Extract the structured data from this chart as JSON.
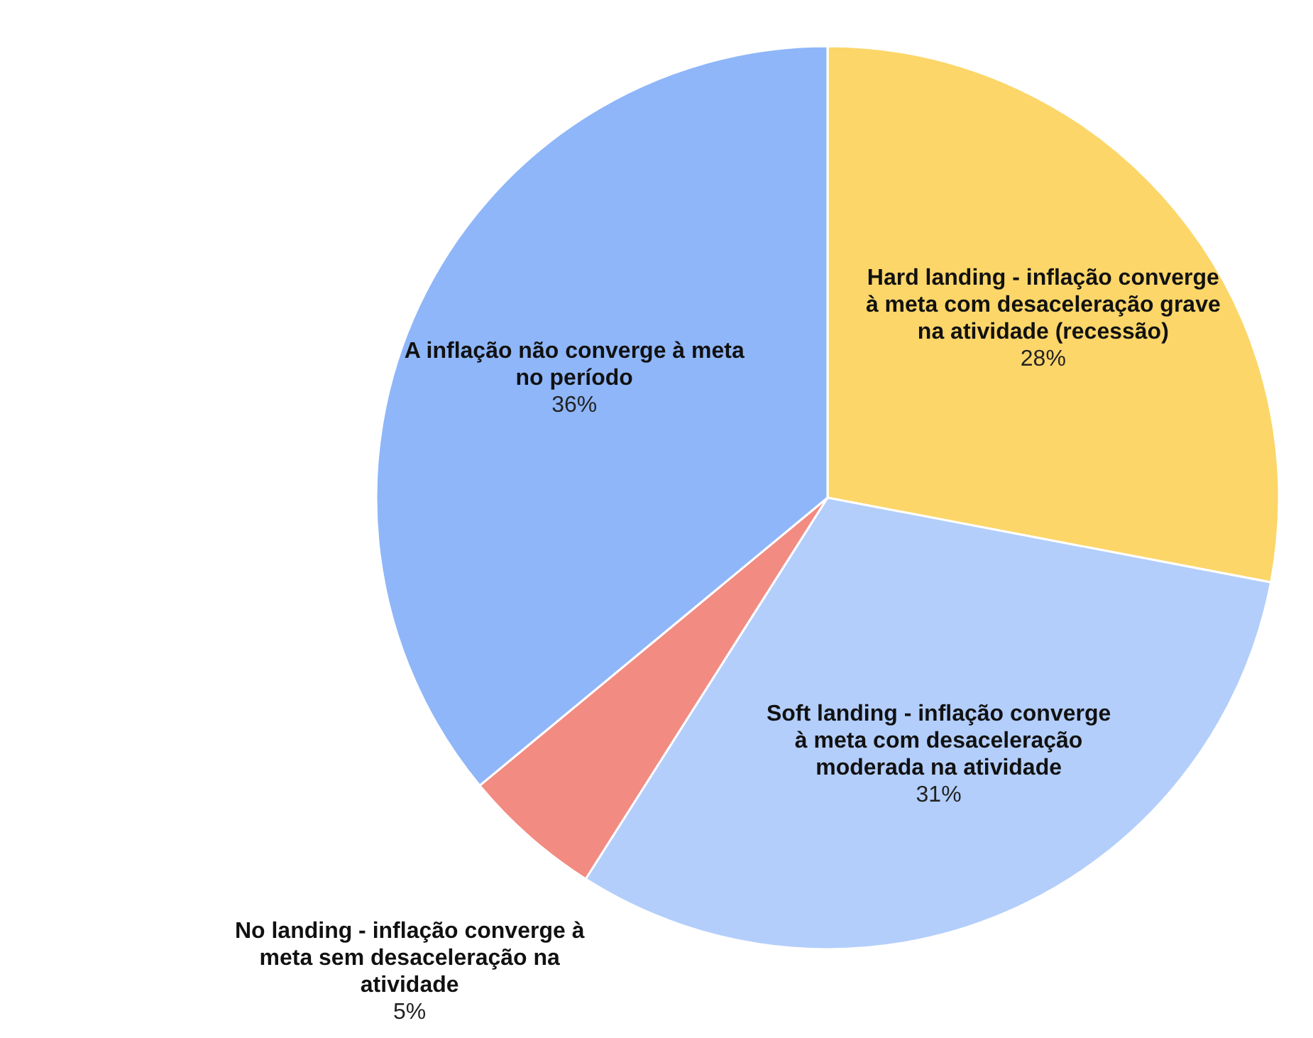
{
  "chart_data": {
    "type": "pie",
    "categories": [
      "Hard landing - inflação converge à meta com desaceleração grave na atividade (recessão)",
      "Soft landing - inflação converge à meta com desaceleração moderada na atividade",
      "No landing - inflação converge à meta sem desaceleração na atividade",
      "A inflação não converge à meta no período"
    ],
    "values": [
      28,
      31,
      5,
      36
    ],
    "colors": [
      "#fcd669",
      "#b3cefb",
      "#f28b82",
      "#8fb6f9"
    ],
    "value_labels": [
      "28%",
      "31%",
      "5%",
      "36%"
    ],
    "legend": false
  }
}
